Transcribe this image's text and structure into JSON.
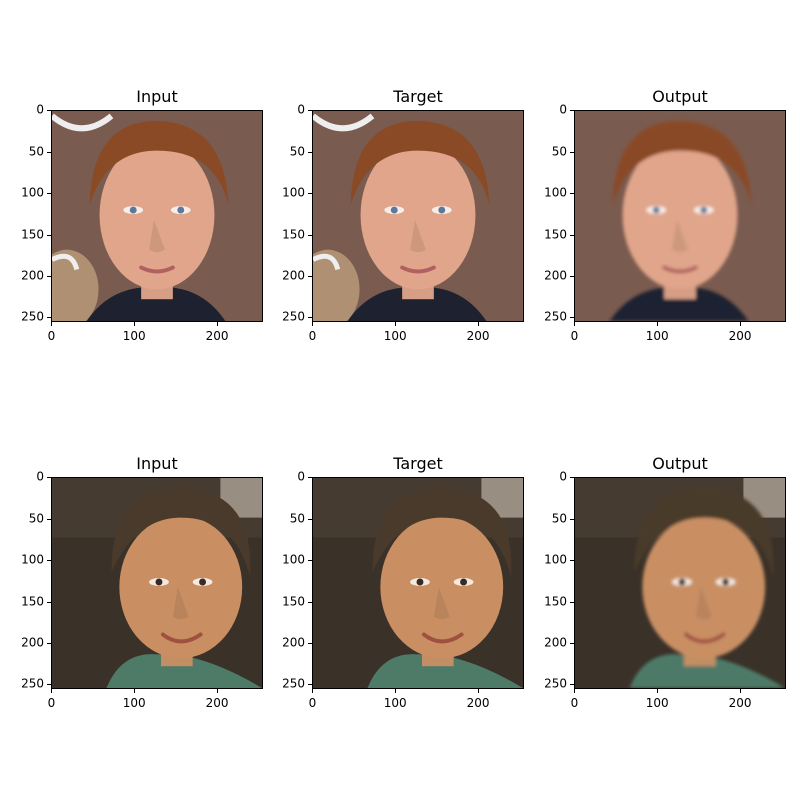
{
  "rows": [
    {
      "panels": [
        {
          "title": "Input",
          "variant": "r1-input"
        },
        {
          "title": "Target",
          "variant": "r1-target"
        },
        {
          "title": "Output",
          "variant": "r1-output"
        }
      ]
    },
    {
      "panels": [
        {
          "title": "Input",
          "variant": "r2-input"
        },
        {
          "title": "Target",
          "variant": "r2-target"
        },
        {
          "title": "Output",
          "variant": "r2-output"
        }
      ]
    }
  ],
  "axes": {
    "x_ticks": [
      "0",
      "100",
      "200"
    ],
    "y_ticks": [
      "0",
      "50",
      "100",
      "150",
      "200",
      "250"
    ]
  },
  "colors": {
    "r1_background": "#7a5b4f",
    "r1_hair": "#8a4a26",
    "r1_skin": "#e0a58a",
    "r2_background": "#3a3128",
    "r2_hair": "#4a3a2c",
    "r2_skin": "#c98f63",
    "r2_shirt": "#4e7a68"
  }
}
